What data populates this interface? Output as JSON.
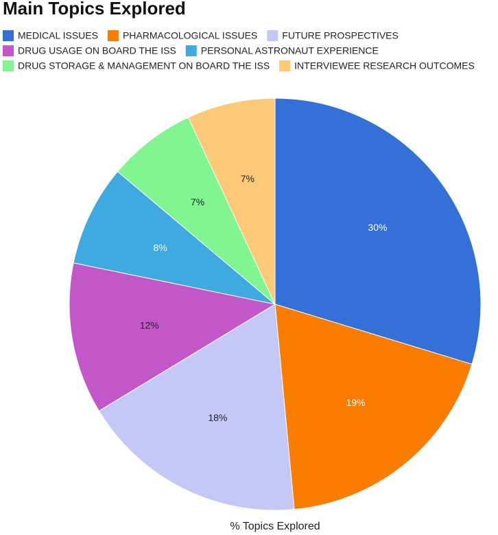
{
  "chart_data": {
    "type": "pie",
    "title": "Main Topics Explored",
    "xlabel": "% Topics Explored",
    "categories": [
      "MEDICAL ISSUES",
      "PHARMACOLOGICAL ISSUES",
      "FUTURE PROSPECTIVES",
      "DRUG USAGE ON BOARD THE ISS",
      "PERSONAL ASTRONAUT EXPERIENCE",
      "DRUG STORAGE & MANAGEMENT ON BOARD THE ISS",
      "INTERVIEWEE RESEARCH OUTCOMES"
    ],
    "values": [
      30,
      19,
      18,
      12,
      8,
      7,
      7
    ],
    "value_labels": [
      "30%",
      "19%",
      "18%",
      "12%",
      "8%",
      "7%",
      "7%"
    ],
    "colors": [
      "#3370d8",
      "#fa7c00",
      "#c4c8f6",
      "#c257c9",
      "#3eaadf",
      "#81f590",
      "#fbca78"
    ],
    "legend": "top"
  }
}
